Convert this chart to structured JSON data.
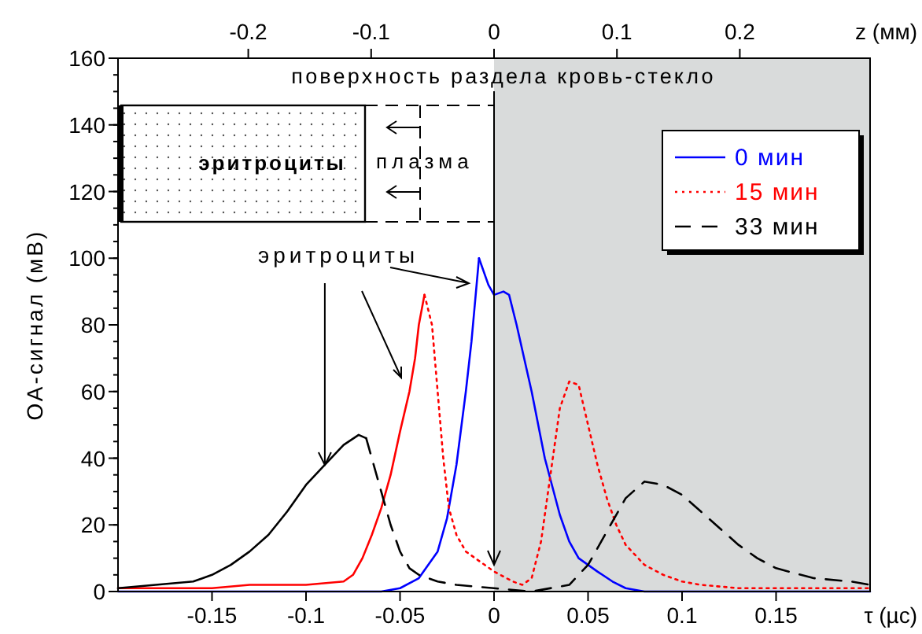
{
  "chart_data": {
    "type": "line",
    "xlabel": "τ (µс)",
    "x2label": "z (мм)",
    "ylabel": "ОА-сигнал (мВ)",
    "xlim": [
      -0.2,
      0.2
    ],
    "xticks": [
      -0.15,
      -0.1,
      -0.05,
      0,
      0.05,
      0.1,
      0.15
    ],
    "x2lim": [
      -0.306,
      0.306
    ],
    "x2ticks": [
      -0.2,
      -0.1,
      0,
      0.1,
      0.2
    ],
    "ylim": [
      0,
      160
    ],
    "yticks": [
      0,
      20,
      40,
      60,
      80,
      100,
      120,
      140,
      160
    ],
    "grid": false,
    "legend": "top right",
    "bands": [
      {
        "axis": "x",
        "from": 0,
        "to": 0.2,
        "color": "#d9dbdb"
      }
    ],
    "ref_lines": [
      {
        "axis": "x",
        "value": 0,
        "label": "поверхность раздела кровь-стекло",
        "color": "#000000"
      }
    ],
    "annotations": [
      "эритроциты",
      "плазма",
      {
        "text": "эритроциты",
        "x": -0.09,
        "y": 38
      }
    ],
    "series": [
      {
        "color": "#0000ff",
        "line_style": "solid",
        "x": [
          -0.2,
          -0.06,
          -0.05,
          -0.04,
          -0.03,
          -0.025,
          -0.02,
          -0.015,
          -0.012,
          -0.008
        ],
        "values": [
          0,
          0,
          1,
          4,
          12,
          22,
          38,
          60,
          75,
          100
        ]
      },
      {
        "name": "0 мин",
        "color": "#0000ff",
        "line_style": "solid",
        "x": [
          -0.008,
          -0.003,
          0,
          0.005,
          0.008,
          0.012,
          0.02,
          0.027,
          0.035,
          0.04,
          0.045,
          0.055,
          0.063,
          0.07,
          0.08,
          0.2
        ],
        "values": [
          100,
          92,
          89,
          90,
          89,
          80,
          60,
          40,
          23,
          15,
          10,
          6,
          3,
          1,
          0,
          0
        ]
      },
      {
        "color": "#ff0000",
        "line_style": "solid",
        "x": [
          -0.2,
          -0.15,
          -0.13,
          -0.1,
          -0.08,
          -0.075,
          -0.07,
          -0.065,
          -0.06,
          -0.055,
          -0.05,
          -0.045,
          -0.042,
          -0.04,
          -0.037
        ],
        "values": [
          1,
          1,
          2,
          2,
          3,
          5,
          10,
          17,
          25,
          35,
          48,
          60,
          70,
          80,
          89
        ]
      },
      {
        "name": "15 мин",
        "color": "#ff0000",
        "line_style": "dotted",
        "x": [
          -0.037,
          -0.033,
          -0.03,
          -0.027,
          -0.024,
          -0.02,
          -0.015,
          -0.01,
          0,
          0.01,
          0.015,
          0.02,
          0.025,
          0.03,
          0.035,
          0.04,
          0.045,
          0.05,
          0.055,
          0.06,
          0.065,
          0.07,
          0.08,
          0.09,
          0.1,
          0.11,
          0.13,
          0.2
        ],
        "values": [
          89,
          80,
          60,
          40,
          25,
          17,
          12,
          10,
          6,
          3,
          2,
          4,
          15,
          35,
          55,
          63,
          62,
          50,
          38,
          28,
          20,
          14,
          8,
          5,
          3,
          2,
          1,
          1
        ]
      },
      {
        "color": "#000000",
        "line_style": "solid",
        "x": [
          -0.2,
          -0.18,
          -0.16,
          -0.15,
          -0.14,
          -0.13,
          -0.12,
          -0.11,
          -0.1,
          -0.09,
          -0.08,
          -0.072,
          -0.068
        ],
        "values": [
          1,
          2,
          3,
          5,
          8,
          12,
          17,
          24,
          32,
          38,
          44,
          47,
          46
        ]
      },
      {
        "name": "33 мин",
        "color": "#000000",
        "line_style": "dashed",
        "x": [
          -0.068,
          -0.065,
          -0.06,
          -0.055,
          -0.05,
          -0.045,
          -0.04,
          -0.03,
          -0.02,
          0,
          0.02,
          0.04,
          0.05,
          0.06,
          0.07,
          0.08,
          0.09,
          0.1,
          0.11,
          0.12,
          0.13,
          0.14,
          0.15,
          0.17,
          0.19,
          0.2
        ],
        "values": [
          46,
          40,
          30,
          20,
          12,
          7,
          5,
          3,
          2,
          1,
          0,
          2,
          8,
          18,
          28,
          33,
          32,
          29,
          24,
          19,
          14,
          10,
          7,
          4,
          3,
          2
        ]
      }
    ]
  }
}
